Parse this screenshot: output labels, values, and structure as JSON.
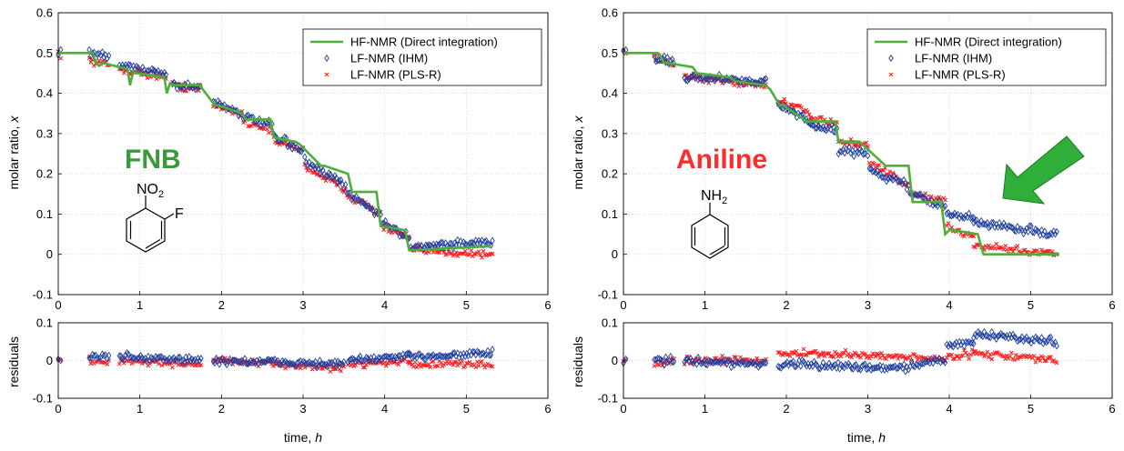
{
  "colors": {
    "hf": "#4daf3a",
    "ihm": "#1f3f9e",
    "plsr": "#ff1f1f",
    "arrow": "#2fae3a",
    "fnb_label": "#3a9a3a",
    "aniline_label": "#ff2a2a",
    "grid": "#d0d0d0"
  },
  "legend": {
    "hf": "HF-NMR (Direct integration)",
    "ihm": "LF-NMR (IHM)",
    "plsr": "LF-NMR (PLS-R)"
  },
  "panels": [
    {
      "compound": "FNB",
      "formula_main": "NO",
      "formula_sub": "2",
      "substituent": "F",
      "main_ylabel": "molar ratio,",
      "main_ylabel_var": "x",
      "resid_ylabel": "residuals",
      "xlabel": "time,",
      "xlabel_var": "h"
    },
    {
      "compound": "Aniline",
      "formula_main": "NH",
      "formula_sub": "2",
      "substituent": "",
      "main_ylabel": "molar ratio,",
      "main_ylabel_var": "x",
      "resid_ylabel": "residuals",
      "xlabel": "time,",
      "xlabel_var": "h",
      "annotation": "arrow-pointing-at-deviation"
    }
  ],
  "chart_data": [
    {
      "type": "scatter",
      "subplot": "molar-ratio",
      "panel": "FNB",
      "xlim": [
        0,
        6
      ],
      "ylim": [
        -0.1,
        0.6
      ],
      "xticks": [
        "0",
        "1",
        "2",
        "3",
        "4",
        "5",
        "6"
      ],
      "yticks": [
        "-0.1",
        "0",
        "0.1",
        "0.2",
        "0.3",
        "0.4",
        "0.5",
        "0.6"
      ],
      "grid": true,
      "legend_position": "top-right",
      "hf_line": {
        "name": "HF-NMR (Direct integration)",
        "x": [
          0,
          0.42,
          0.46,
          0.5,
          0.55,
          0.85,
          0.88,
          0.92,
          0.96,
          1.3,
          1.33,
          1.37,
          1.41,
          1.74,
          1.77,
          1.92,
          1.96,
          2.25,
          2.3,
          2.6,
          2.64,
          2.9,
          2.95,
          3.22,
          3.26,
          3.55,
          3.6,
          3.9,
          3.95,
          4.25,
          4.3,
          5.3
        ],
        "y": [
          0.5,
          0.5,
          0.475,
          0.468,
          0.475,
          0.46,
          0.42,
          0.455,
          0.45,
          0.44,
          0.4,
          0.425,
          0.42,
          0.42,
          0.41,
          0.37,
          0.37,
          0.35,
          0.335,
          0.335,
          0.29,
          0.28,
          0.275,
          0.22,
          0.22,
          0.2,
          0.155,
          0.155,
          0.07,
          0.06,
          0.01,
          0.02
        ]
      },
      "ihm": {
        "name": "LF-NMR (IHM)",
        "segments": [
          {
            "x0": 0,
            "x1": 0.03,
            "y0": 0.5,
            "y1": 0.5
          },
          {
            "x0": 0.38,
            "x1": 0.62,
            "y0": 0.5,
            "y1": 0.49
          },
          {
            "x0": 0.75,
            "x1": 1.32,
            "y0": 0.47,
            "y1": 0.45
          },
          {
            "x0": 1.4,
            "x1": 1.74,
            "y0": 0.42,
            "y1": 0.415
          },
          {
            "x0": 1.9,
            "x1": 2.25,
            "y0": 0.38,
            "y1": 0.35
          },
          {
            "x0": 2.27,
            "x1": 2.62,
            "y0": 0.34,
            "y1": 0.32
          },
          {
            "x0": 2.64,
            "x1": 3.0,
            "y0": 0.29,
            "y1": 0.26
          },
          {
            "x0": 3.02,
            "x1": 3.52,
            "y0": 0.23,
            "y1": 0.17
          },
          {
            "x0": 3.54,
            "x1": 3.95,
            "y0": 0.15,
            "y1": 0.1
          },
          {
            "x0": 3.97,
            "x1": 4.3,
            "y0": 0.08,
            "y1": 0.04
          },
          {
            "x0": 4.32,
            "x1": 5.32,
            "y0": 0.02,
            "y1": 0.03
          }
        ]
      },
      "plsr": {
        "name": "LF-NMR (PLS-R)",
        "segments": [
          {
            "x0": 0,
            "x1": 0.03,
            "y0": 0.5,
            "y1": 0.5
          },
          {
            "x0": 0.38,
            "x1": 0.62,
            "y0": 0.48,
            "y1": 0.47
          },
          {
            "x0": 0.75,
            "x1": 1.32,
            "y0": 0.46,
            "y1": 0.44
          },
          {
            "x0": 1.4,
            "x1": 1.74,
            "y0": 0.42,
            "y1": 0.41
          },
          {
            "x0": 1.9,
            "x1": 2.25,
            "y0": 0.37,
            "y1": 0.35
          },
          {
            "x0": 2.27,
            "x1": 2.62,
            "y0": 0.33,
            "y1": 0.31
          },
          {
            "x0": 2.64,
            "x1": 3.0,
            "y0": 0.28,
            "y1": 0.26
          },
          {
            "x0": 3.02,
            "x1": 3.52,
            "y0": 0.22,
            "y1": 0.16
          },
          {
            "x0": 3.54,
            "x1": 3.95,
            "y0": 0.15,
            "y1": 0.1
          },
          {
            "x0": 3.97,
            "x1": 4.3,
            "y0": 0.07,
            "y1": 0.04
          },
          {
            "x0": 4.32,
            "x1": 5.32,
            "y0": 0.01,
            "y1": 0.0
          }
        ]
      }
    },
    {
      "type": "scatter",
      "subplot": "residuals",
      "panel": "FNB",
      "xlim": [
        0,
        6
      ],
      "ylim": [
        -0.1,
        0.1
      ],
      "xticks": [
        "0",
        "1",
        "2",
        "3",
        "4",
        "5",
        "6"
      ],
      "yticks": [
        "-0.1",
        "0",
        "0.1"
      ],
      "grid": true,
      "ihm": {
        "segments": [
          {
            "x0": 0,
            "x1": 0.03,
            "y0": 0.0,
            "y1": 0.0
          },
          {
            "x0": 0.38,
            "x1": 0.62,
            "y0": 0.01,
            "y1": 0.01
          },
          {
            "x0": 0.75,
            "x1": 1.75,
            "y0": 0.01,
            "y1": 0.0
          },
          {
            "x0": 1.9,
            "x1": 3.5,
            "y0": 0.0,
            "y1": -0.01
          },
          {
            "x0": 3.55,
            "x1": 4.3,
            "y0": 0.0,
            "y1": 0.01
          },
          {
            "x0": 4.3,
            "x1": 5.32,
            "y0": 0.01,
            "y1": 0.02
          }
        ]
      },
      "plsr": {
        "segments": [
          {
            "x0": 0,
            "x1": 0.03,
            "y0": 0.0,
            "y1": 0.0
          },
          {
            "x0": 0.38,
            "x1": 0.62,
            "y0": 0.0,
            "y1": -0.01
          },
          {
            "x0": 0.75,
            "x1": 1.75,
            "y0": 0.0,
            "y1": -0.01
          },
          {
            "x0": 1.9,
            "x1": 3.5,
            "y0": 0.0,
            "y1": -0.02
          },
          {
            "x0": 3.55,
            "x1": 4.3,
            "y0": -0.01,
            "y1": 0.0
          },
          {
            "x0": 4.3,
            "x1": 5.32,
            "y0": -0.01,
            "y1": -0.01
          }
        ]
      }
    },
    {
      "type": "scatter",
      "subplot": "molar-ratio",
      "panel": "Aniline",
      "xlim": [
        0,
        6
      ],
      "ylim": [
        -0.1,
        0.6
      ],
      "xticks": [
        "0",
        "1",
        "2",
        "3",
        "4",
        "5",
        "6"
      ],
      "yticks": [
        "-0.1",
        "0",
        "0.1",
        "0.2",
        "0.3",
        "0.4",
        "0.5",
        "0.6"
      ],
      "grid": true,
      "legend_position": "top-right",
      "hf_line": {
        "name": "HF-NMR (Direct integration)",
        "x": [
          0,
          0.42,
          0.46,
          0.5,
          0.55,
          0.85,
          0.9,
          1.3,
          1.37,
          1.74,
          1.8,
          1.92,
          1.96,
          2.25,
          2.3,
          2.6,
          2.64,
          2.9,
          2.95,
          3.22,
          3.26,
          3.5,
          3.55,
          3.9,
          3.95,
          4.0,
          4.05,
          4.35,
          4.42,
          5.35
        ],
        "y": [
          0.5,
          0.5,
          0.49,
          0.475,
          0.475,
          0.465,
          0.45,
          0.44,
          0.43,
          0.42,
          0.41,
          0.37,
          0.37,
          0.33,
          0.33,
          0.33,
          0.28,
          0.28,
          0.27,
          0.22,
          0.22,
          0.22,
          0.13,
          0.13,
          0.05,
          0.06,
          0.06,
          0.05,
          0.0,
          0.0
        ]
      },
      "ihm": {
        "name": "LF-NMR (IHM)",
        "segments": [
          {
            "x0": 0,
            "x1": 0.03,
            "y0": 0.5,
            "y1": 0.5
          },
          {
            "x0": 0.38,
            "x1": 0.62,
            "y0": 0.49,
            "y1": 0.48
          },
          {
            "x0": 0.75,
            "x1": 1.75,
            "y0": 0.44,
            "y1": 0.43
          },
          {
            "x0": 1.9,
            "x1": 2.3,
            "y0": 0.37,
            "y1": 0.33
          },
          {
            "x0": 2.3,
            "x1": 2.62,
            "y0": 0.32,
            "y1": 0.31
          },
          {
            "x0": 2.64,
            "x1": 3.0,
            "y0": 0.26,
            "y1": 0.25
          },
          {
            "x0": 3.02,
            "x1": 3.5,
            "y0": 0.21,
            "y1": 0.17
          },
          {
            "x0": 3.52,
            "x1": 3.95,
            "y0": 0.15,
            "y1": 0.12
          },
          {
            "x0": 3.97,
            "x1": 4.3,
            "y0": 0.1,
            "y1": 0.09
          },
          {
            "x0": 4.3,
            "x1": 5.32,
            "y0": 0.08,
            "y1": 0.05
          }
        ]
      },
      "plsr": {
        "name": "LF-NMR (PLS-R)",
        "segments": [
          {
            "x0": 0,
            "x1": 0.03,
            "y0": 0.5,
            "y1": 0.5
          },
          {
            "x0": 0.38,
            "x1": 0.62,
            "y0": 0.49,
            "y1": 0.47
          },
          {
            "x0": 0.75,
            "x1": 1.75,
            "y0": 0.44,
            "y1": 0.42
          },
          {
            "x0": 1.9,
            "x1": 2.3,
            "y0": 0.38,
            "y1": 0.35
          },
          {
            "x0": 2.3,
            "x1": 2.62,
            "y0": 0.34,
            "y1": 0.32
          },
          {
            "x0": 2.64,
            "x1": 3.0,
            "y0": 0.28,
            "y1": 0.27
          },
          {
            "x0": 3.02,
            "x1": 3.5,
            "y0": 0.23,
            "y1": 0.17
          },
          {
            "x0": 3.52,
            "x1": 3.95,
            "y0": 0.15,
            "y1": 0.13
          },
          {
            "x0": 3.97,
            "x1": 4.3,
            "y0": 0.07,
            "y1": 0.04
          },
          {
            "x0": 4.3,
            "x1": 5.32,
            "y0": 0.02,
            "y1": 0.0
          }
        ]
      }
    },
    {
      "type": "scatter",
      "subplot": "residuals",
      "panel": "Aniline",
      "xlim": [
        0,
        6
      ],
      "ylim": [
        -0.1,
        0.1
      ],
      "xticks": [
        "0",
        "1",
        "2",
        "3",
        "4",
        "5",
        "6"
      ],
      "yticks": [
        "-0.1",
        "0",
        "0.1"
      ],
      "grid": true,
      "ihm": {
        "segments": [
          {
            "x0": 0,
            "x1": 0.03,
            "y0": 0.0,
            "y1": 0.0
          },
          {
            "x0": 0.38,
            "x1": 0.62,
            "y0": 0.0,
            "y1": 0.0
          },
          {
            "x0": 0.75,
            "x1": 1.75,
            "y0": 0.0,
            "y1": -0.01
          },
          {
            "x0": 1.9,
            "x1": 3.5,
            "y0": -0.01,
            "y1": -0.02
          },
          {
            "x0": 3.52,
            "x1": 3.95,
            "y0": -0.01,
            "y1": 0.0
          },
          {
            "x0": 3.97,
            "x1": 4.3,
            "y0": 0.04,
            "y1": 0.05
          },
          {
            "x0": 4.3,
            "x1": 5.32,
            "y0": 0.07,
            "y1": 0.05
          }
        ]
      },
      "plsr": {
        "segments": [
          {
            "x0": 0,
            "x1": 0.03,
            "y0": 0.0,
            "y1": 0.0
          },
          {
            "x0": 0.38,
            "x1": 0.62,
            "y0": -0.01,
            "y1": 0.0
          },
          {
            "x0": 0.75,
            "x1": 1.75,
            "y0": 0.0,
            "y1": 0.0
          },
          {
            "x0": 1.9,
            "x1": 3.5,
            "y0": 0.02,
            "y1": 0.01
          },
          {
            "x0": 3.52,
            "x1": 3.95,
            "y0": 0.01,
            "y1": 0.0
          },
          {
            "x0": 3.97,
            "x1": 4.3,
            "y0": 0.01,
            "y1": 0.02
          },
          {
            "x0": 4.3,
            "x1": 5.32,
            "y0": 0.02,
            "y1": 0.0
          }
        ]
      }
    }
  ]
}
